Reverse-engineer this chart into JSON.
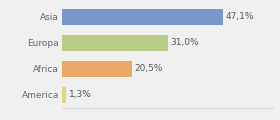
{
  "categories": [
    "America",
    "Africa",
    "Europa",
    "Asia"
  ],
  "values": [
    1.3,
    20.5,
    31.0,
    47.1
  ],
  "labels": [
    "1,3%",
    "20,5%",
    "31,0%",
    "47,1%"
  ],
  "bar_colors": [
    "#e8d478",
    "#e8a868",
    "#b8cc88",
    "#7898cc"
  ],
  "background_color": "#f0f0f0",
  "xlim": [
    0,
    62
  ],
  "label_fontsize": 6.5,
  "tick_fontsize": 6.5,
  "bar_height": 0.62
}
